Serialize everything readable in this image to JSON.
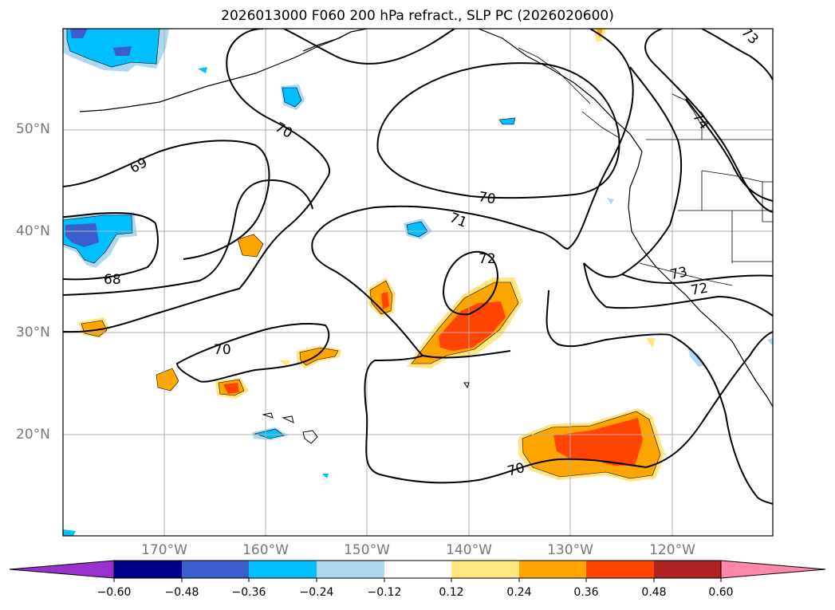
{
  "title": "2026013000 F060 200 hPa refract., SLP PC (2026020600)",
  "lat_labels": [
    "50°N",
    "40°N",
    "30°N",
    "20°N"
  ],
  "lon_labels": [
    "170°W",
    "160°W",
    "150°W",
    "140°W",
    "130°W",
    "120°W"
  ],
  "contour_labels": [
    "69",
    "70",
    "68",
    "70",
    "70",
    "71",
    "72",
    "73",
    "72",
    "74",
    "73",
    "70"
  ],
  "colorbar": {
    "ticks": [
      "−0.60",
      "−0.48",
      "−0.36",
      "−0.24",
      "−0.12",
      "0.12",
      "0.24",
      "0.36",
      "0.48",
      "0.60"
    ],
    "colors": [
      "#9932cc",
      "#00008b",
      "#3a5fcd",
      "#00bfff",
      "#add8f0",
      "#ffffff",
      "#ffe680",
      "#ffa500",
      "#ff4500",
      "#b22222",
      "#ff88aa"
    ]
  }
}
